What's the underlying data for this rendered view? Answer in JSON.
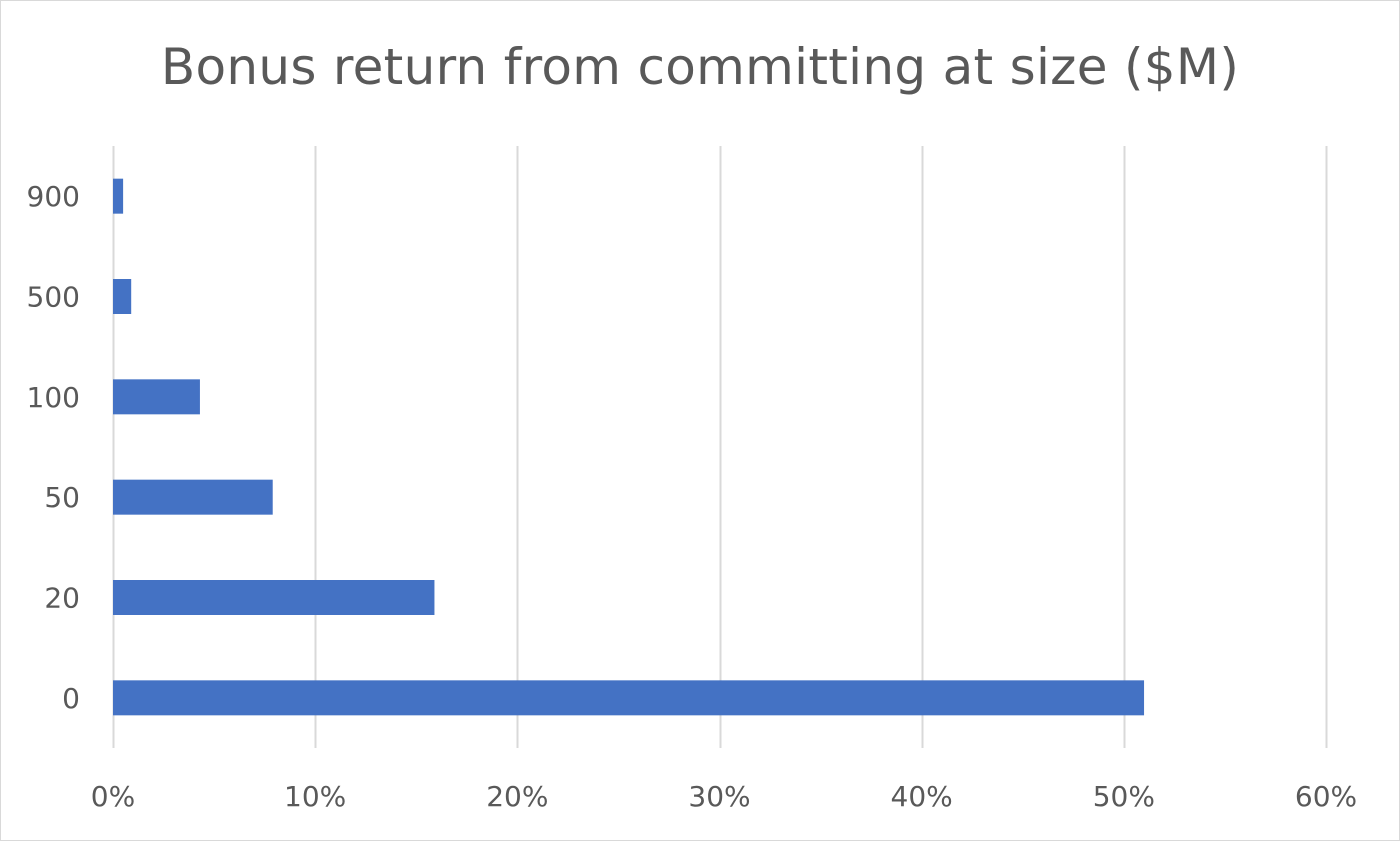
{
  "chart_data": {
    "type": "bar",
    "orientation": "horizontal",
    "title": "Bonus return from committing at size ($M)",
    "xlabel": "",
    "ylabel": "",
    "categories": [
      "0",
      "20",
      "50",
      "100",
      "500",
      "900"
    ],
    "values": [
      51,
      15.9,
      7.9,
      4.3,
      0.9,
      0.5
    ],
    "xlim": [
      0,
      60
    ],
    "xticks": [
      0,
      10,
      20,
      30,
      40,
      50,
      60
    ],
    "xtick_labels": [
      "0%",
      "10%",
      "20%",
      "30%",
      "40%",
      "50%",
      "60%"
    ],
    "grid": "vertical",
    "legend": "none",
    "bar_color": "#4472c4",
    "grid_color": "#d9d9d9",
    "text_color": "#595959"
  }
}
